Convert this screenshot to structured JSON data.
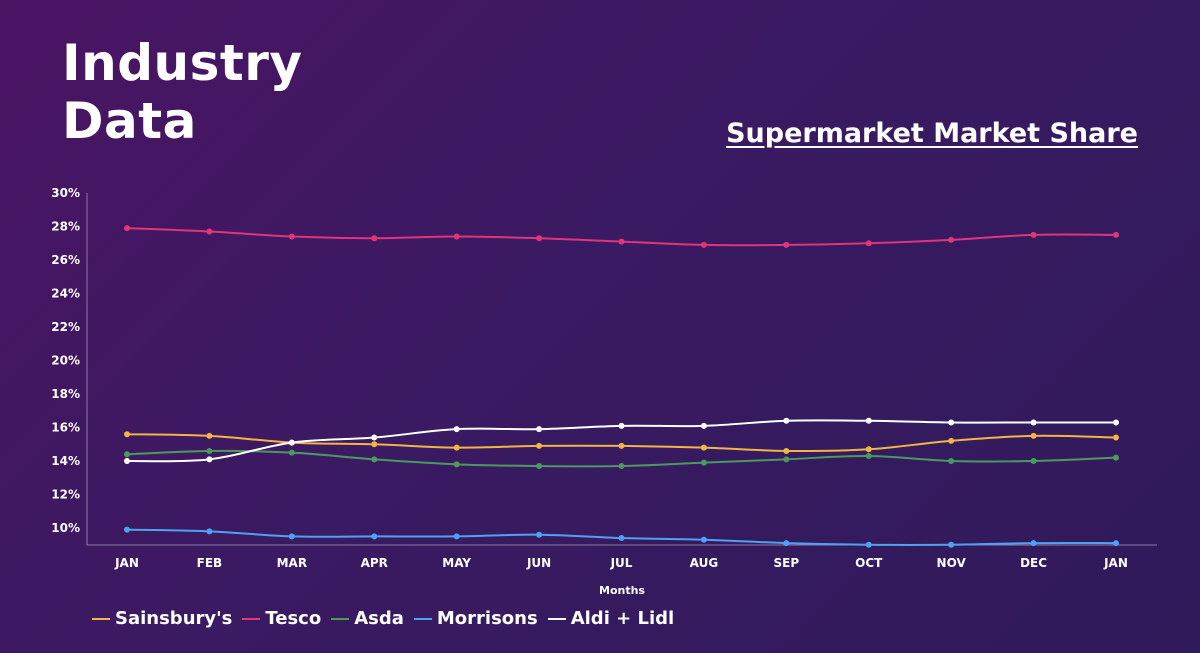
{
  "page_title": [
    "Industry",
    "Data"
  ],
  "chart_data": {
    "type": "line",
    "title": "Supermarket Market Share",
    "xlabel": "Months",
    "ylabel": "",
    "categories": [
      "JAN",
      "FEB",
      "MAR",
      "APR",
      "MAY",
      "JUN",
      "JUL",
      "AUG",
      "SEP",
      "OCT",
      "NOV",
      "DEC",
      "JAN"
    ],
    "y_ticks": [
      "30%",
      "28%",
      "26%",
      "24%",
      "22%",
      "20%",
      "18%",
      "16%",
      "14%",
      "12%",
      "10%"
    ],
    "ylim": [
      9,
      30
    ],
    "grid": false,
    "legend_position": "bottom-left",
    "series": [
      {
        "name": "Sainsbury's",
        "color": "#f0b542",
        "values": [
          15.6,
          15.5,
          15.1,
          15.0,
          14.8,
          14.9,
          14.9,
          14.8,
          14.6,
          14.7,
          15.2,
          15.5,
          15.4
        ]
      },
      {
        "name": "Tesco",
        "color": "#e0357a",
        "values": [
          27.9,
          27.7,
          27.4,
          27.3,
          27.4,
          27.3,
          27.1,
          26.9,
          26.9,
          27.0,
          27.2,
          27.5,
          27.5
        ]
      },
      {
        "name": "Asda",
        "color": "#4a9a5e",
        "values": [
          14.4,
          14.6,
          14.5,
          14.1,
          13.8,
          13.7,
          13.7,
          13.9,
          14.1,
          14.3,
          14.0,
          14.0,
          14.2
        ]
      },
      {
        "name": "Morrisons",
        "color": "#4da3f0",
        "values": [
          9.9,
          9.8,
          9.5,
          9.5,
          9.5,
          9.6,
          9.4,
          9.3,
          9.1,
          9.0,
          9.0,
          9.1,
          9.1
        ]
      },
      {
        "name": "Aldi + Lidl",
        "color": "#ffffff",
        "values": [
          14.0,
          14.1,
          15.1,
          15.4,
          15.9,
          15.9,
          16.1,
          16.1,
          16.4,
          16.4,
          16.3,
          16.3,
          16.3
        ]
      }
    ]
  }
}
